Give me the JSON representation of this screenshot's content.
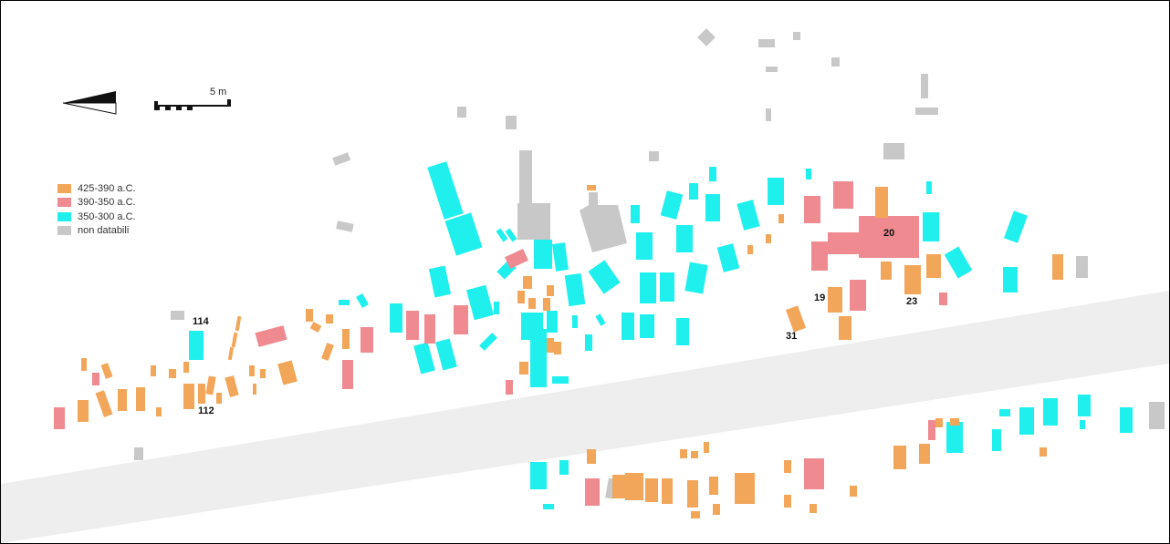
{
  "colors": {
    "phase1": "#f2a65a",
    "phase2": "#ef8a91",
    "phase3": "#1ff0ee",
    "undated": "#c8c8c8",
    "road": "#eeeeee",
    "frame": "#000000"
  },
  "legend": {
    "items": [
      {
        "label": "425-390 a.C.",
        "color": "#f2a65a"
      },
      {
        "label": "390-350 a.C.",
        "color": "#ef8a91"
      },
      {
        "label": "350-300 a.C.",
        "color": "#1ff0ee"
      },
      {
        "label": "non databili",
        "color": "#c8c8c8"
      }
    ]
  },
  "scale_bar": {
    "label": "5 m"
  },
  "north_arrow": {
    "icon": "north-arrow-icon"
  },
  "tomb_labels": {
    "t114": "114",
    "t112": "112",
    "t20": "20",
    "t19": "19",
    "t23": "23",
    "t31": "31"
  }
}
